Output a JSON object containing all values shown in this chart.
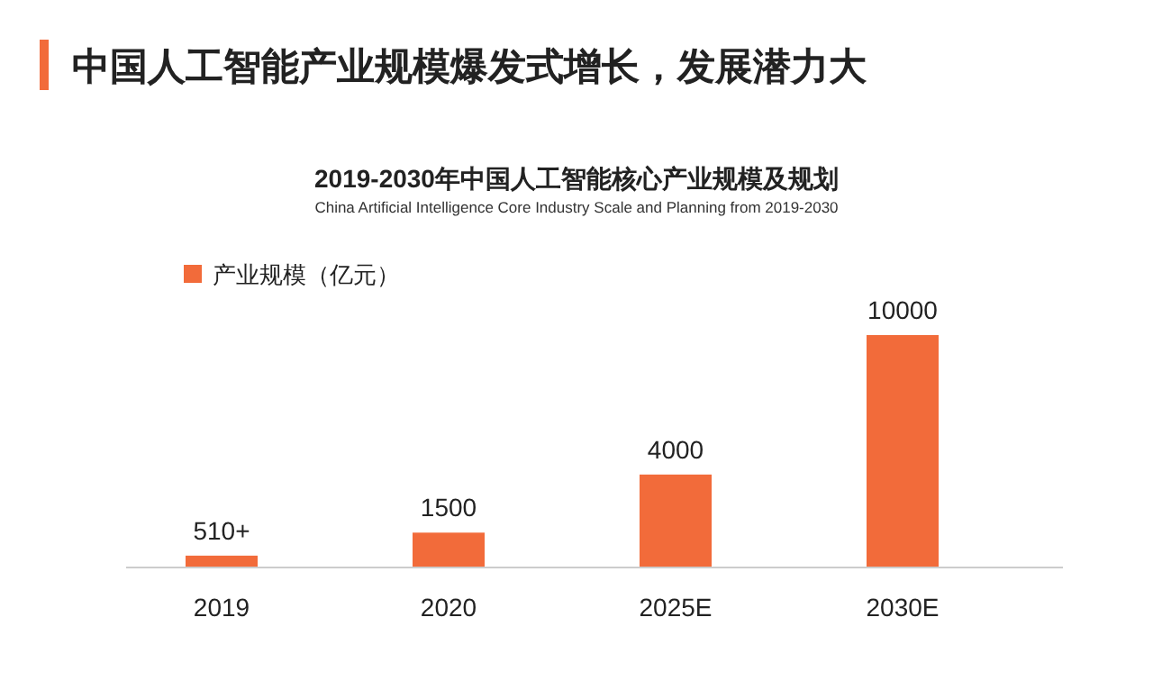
{
  "chart_data": {
    "type": "bar",
    "title": "中国人工智能产业规模爆发式增长，发展潜力大",
    "subtitle": "2019-2030年中国人工智能核心产业规模及规划",
    "annotations": [
      "China Artificial Intelligence Core Industry Scale and Planning from 2019-2030"
    ],
    "categories": [
      "2019",
      "2020",
      "2025E",
      "2030E"
    ],
    "series": [
      {
        "name": "产业规模（亿元）",
        "color": "#f26b3a",
        "values": [
          510,
          1500,
          4000,
          10000
        ],
        "value_labels": [
          "510+",
          "1500",
          "4000",
          "10000"
        ]
      }
    ],
    "legend": "top left",
    "grid": false
  }
}
